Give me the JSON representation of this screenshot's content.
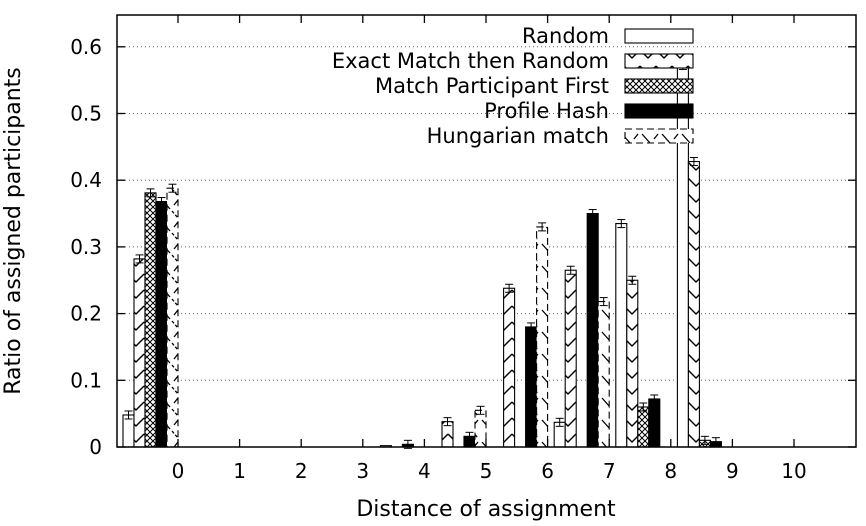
{
  "chart_data": {
    "type": "bar",
    "xlabel": "Distance of assignment",
    "ylabel": "Ratio of assigned participants",
    "ylim": [
      0,
      0.65
    ],
    "yticks": [
      0,
      0.1,
      0.2,
      0.3,
      0.4,
      0.5,
      0.6
    ],
    "ytick_labels": [
      "0",
      "0.1",
      "0.2",
      "0.3",
      "0.4",
      "0.5",
      "0.6"
    ],
    "categories": [
      "0",
      "1",
      "2",
      "3",
      "4",
      "5",
      "6",
      "7",
      "8",
      "9",
      "10"
    ],
    "grid": "horizontal dotted",
    "legend_position": "top-right",
    "error_bars": true,
    "series": [
      {
        "name": "Random",
        "pattern": "hollow",
        "values": [
          0.048,
          0,
          0,
          0,
          0,
          0,
          0,
          0.037,
          0.335,
          0.572,
          0
        ]
      },
      {
        "name": "Exact Match then Random",
        "pattern": "zigzag",
        "values": [
          0.282,
          0,
          0,
          0,
          0.002,
          0.038,
          0.238,
          0.265,
          0.25,
          0.428,
          0
        ]
      },
      {
        "name": "Match Participant First",
        "pattern": "crosshatch",
        "values": [
          0.381,
          0,
          0,
          0,
          0,
          0,
          0,
          0,
          0.06,
          0.01,
          0
        ]
      },
      {
        "name": "Profile Hash",
        "pattern": "solid",
        "values": [
          0.368,
          0,
          0,
          0,
          0.004,
          0.016,
          0.18,
          0.35,
          0.072,
          0.008,
          0
        ]
      },
      {
        "name": "Hungarian match",
        "pattern": "dashed",
        "values": [
          0.388,
          0,
          0,
          0,
          0,
          0.055,
          0.33,
          0.218,
          0,
          0,
          0
        ]
      }
    ]
  }
}
